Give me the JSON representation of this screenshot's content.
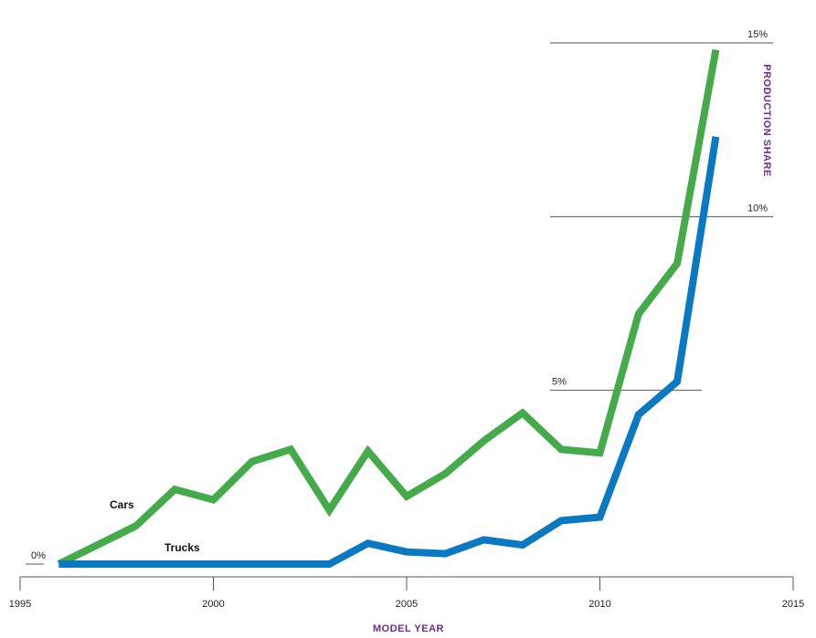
{
  "chart_data": {
    "type": "line",
    "xlabel": "MODEL YEAR",
    "ylabel": "PRODUCTION SHARE",
    "xlim": [
      1995,
      2015
    ],
    "ylim": [
      0,
      15
    ],
    "x_ticks": [
      {
        "value": 1995,
        "label": "1995"
      },
      {
        "value": 2000,
        "label": "2000"
      },
      {
        "value": 2005,
        "label": "2005"
      },
      {
        "value": 2010,
        "label": "2010"
      },
      {
        "value": 2015,
        "label": "2015"
      }
    ],
    "y_ticks": [
      {
        "value": 0,
        "label": "0%"
      },
      {
        "value": 5,
        "label": "5%"
      },
      {
        "value": 10,
        "label": "10%"
      },
      {
        "value": 15,
        "label": "15%"
      }
    ],
    "grid": "horizontal reference lines",
    "series": [
      {
        "name": "Cars",
        "color": "#45ab4a",
        "x": [
          1996,
          1997,
          1998,
          1999,
          2000,
          2001,
          2002,
          2003,
          2004,
          2005,
          2006,
          2007,
          2008,
          2009,
          2010,
          2011,
          2012,
          2013
        ],
        "values": [
          0.0,
          0.55,
          1.1,
          2.15,
          1.85,
          2.95,
          3.3,
          1.55,
          3.25,
          1.95,
          2.6,
          3.55,
          4.35,
          3.3,
          3.2,
          7.2,
          8.65,
          14.8
        ]
      },
      {
        "name": "Trucks",
        "color": "#0b79c2",
        "x": [
          1996,
          1997,
          1998,
          1999,
          2000,
          2001,
          2002,
          2003,
          2004,
          2005,
          2006,
          2007,
          2008,
          2009,
          2010,
          2011,
          2012,
          2013
        ],
        "values": [
          0.0,
          0.0,
          0.0,
          0.0,
          0.0,
          0.0,
          0.0,
          0.0,
          0.6,
          0.35,
          0.3,
          0.7,
          0.55,
          1.25,
          1.35,
          4.3,
          5.25,
          12.3
        ]
      }
    ]
  }
}
